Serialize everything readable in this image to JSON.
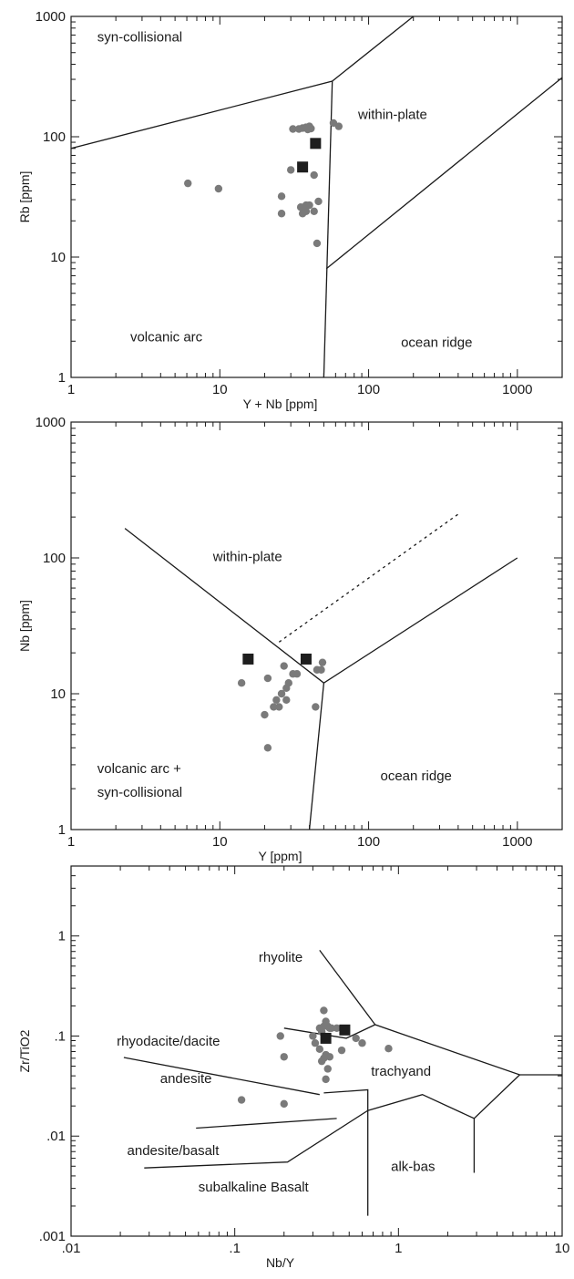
{
  "chart_data": [
    {
      "type": "scatter",
      "xlabel": "Y + Nb  [ppm]",
      "ylabel": "Rb  [ppm]",
      "x_scale": "log",
      "y_scale": "log",
      "xlim": [
        1,
        2000
      ],
      "ylim": [
        1,
        1000
      ],
      "x_ticks": [
        {
          "v": 1,
          "label": "1"
        },
        {
          "v": 10,
          "label": "10"
        },
        {
          "v": 100,
          "label": "100"
        },
        {
          "v": 1000,
          "label": "1000"
        }
      ],
      "y_ticks": [
        {
          "v": 1,
          "label": "1"
        },
        {
          "v": 10,
          "label": "10"
        },
        {
          "v": 100,
          "label": "100"
        },
        {
          "v": 1000,
          "label": "1000"
        }
      ],
      "field_labels": [
        {
          "text": "syn-collisional",
          "x": 1.5,
          "y": 620
        },
        {
          "text": "within-plate",
          "x": 85,
          "y": 140
        },
        {
          "text": "volcanic arc",
          "x": 2.5,
          "y": 2
        },
        {
          "text": "ocean ridge",
          "x": 165,
          "y": 1.8
        }
      ],
      "boundaries": [
        {
          "dashed": false,
          "points": [
            [
              1,
              80
            ],
            [
              57,
              290
            ],
            [
              200,
              1000
            ]
          ]
        },
        {
          "dashed": false,
          "points": [
            [
              57,
              290
            ],
            [
              50,
              1
            ]
          ]
        },
        {
          "dashed": false,
          "points": [
            [
              52,
              8
            ],
            [
              2000,
              310
            ]
          ]
        }
      ],
      "series": [
        {
          "marker": "circle",
          "color": "#7a7a7a",
          "points": [
            [
              6.1,
              41
            ],
            [
              9.8,
              37
            ],
            [
              31,
              116
            ],
            [
              34,
              116
            ],
            [
              36,
              118
            ],
            [
              38,
              120
            ],
            [
              39,
              115
            ],
            [
              40,
              122
            ],
            [
              41,
              117
            ],
            [
              58,
              130
            ],
            [
              63,
              122
            ],
            [
              30,
              53
            ],
            [
              43,
              48
            ],
            [
              26,
              32
            ],
            [
              26,
              23
            ],
            [
              35,
              26
            ],
            [
              36,
              23
            ],
            [
              38,
              27
            ],
            [
              38,
              24
            ],
            [
              40,
              27
            ],
            [
              43,
              24
            ],
            [
              46,
              29
            ],
            [
              45,
              13
            ]
          ]
        },
        {
          "marker": "square",
          "color": "#1e1e1e",
          "points": [
            [
              44,
              88
            ],
            [
              36,
              56
            ]
          ]
        }
      ]
    },
    {
      "type": "scatter",
      "xlabel": "Y  [ppm]",
      "ylabel": "Nb  [ppm]",
      "x_scale": "log",
      "y_scale": "log",
      "xlim": [
        1,
        2000
      ],
      "ylim": [
        1,
        1000
      ],
      "x_ticks": [
        {
          "v": 1,
          "label": "1"
        },
        {
          "v": 10,
          "label": "10"
        },
        {
          "v": 100,
          "label": "100"
        },
        {
          "v": 1000,
          "label": "1000"
        }
      ],
      "y_ticks": [
        {
          "v": 1,
          "label": "1"
        },
        {
          "v": 10,
          "label": "10"
        },
        {
          "v": 100,
          "label": "100"
        },
        {
          "v": 1000,
          "label": "1000"
        }
      ],
      "field_labels": [
        {
          "text": "within-plate",
          "x": 9,
          "y": 95
        },
        {
          "text": "volcanic arc +",
          "x": 1.5,
          "y": 2.6
        },
        {
          "text": "syn-collisional",
          "x": 1.5,
          "y": 1.75
        },
        {
          "text": "ocean ridge",
          "x": 120,
          "y": 2.3
        }
      ],
      "boundaries": [
        {
          "dashed": false,
          "points": [
            [
              2.3,
              165
            ],
            [
              50,
              12
            ],
            [
              1000,
              100
            ]
          ]
        },
        {
          "dashed": false,
          "points": [
            [
              50,
              12
            ],
            [
              40,
              1
            ]
          ]
        },
        {
          "dashed": true,
          "points": [
            [
              25,
              24
            ],
            [
              400,
              210
            ]
          ]
        }
      ],
      "series": [
        {
          "marker": "circle",
          "color": "#7a7a7a",
          "points": [
            [
              14,
              12
            ],
            [
              21,
              13
            ],
            [
              20,
              7
            ],
            [
              21,
              4
            ],
            [
              23,
              8
            ],
            [
              24,
              9
            ],
            [
              25,
              8
            ],
            [
              26,
              10
            ],
            [
              27,
              16
            ],
            [
              28,
              11
            ],
            [
              28,
              9
            ],
            [
              29,
              12
            ],
            [
              31,
              14
            ],
            [
              33,
              14
            ],
            [
              37,
              18
            ],
            [
              44,
              8
            ],
            [
              45,
              15
            ],
            [
              48,
              15
            ],
            [
              49,
              17
            ]
          ]
        },
        {
          "marker": "square",
          "color": "#1e1e1e",
          "points": [
            [
              15.5,
              18
            ],
            [
              38,
              18
            ]
          ]
        }
      ]
    },
    {
      "type": "scatter",
      "xlabel": "Nb/Y",
      "ylabel": "Zr/TiO2",
      "x_scale": "log",
      "y_scale": "log",
      "xlim": [
        0.01,
        10
      ],
      "ylim": [
        0.001,
        5
      ],
      "x_ticks": [
        {
          "v": 0.01,
          "label": ".01"
        },
        {
          "v": 0.1,
          "label": ".1"
        },
        {
          "v": 1,
          "label": "1"
        },
        {
          "v": 10,
          "label": "10"
        }
      ],
      "y_ticks": [
        {
          "v": 0.001,
          "label": ".001"
        },
        {
          "v": 0.01,
          "label": ".01"
        },
        {
          "v": 0.1,
          "label": ".1"
        },
        {
          "v": 1,
          "label": "1"
        }
      ],
      "field_labels": [
        {
          "text": "rhyolite",
          "x": 0.14,
          "y": 0.55
        },
        {
          "text": "rhyodacite/dacite",
          "x": 0.019,
          "y": 0.08
        },
        {
          "text": "andesite",
          "x": 0.035,
          "y": 0.034
        },
        {
          "text": "trachyand",
          "x": 0.68,
          "y": 0.04
        },
        {
          "text": "andesite/basalt",
          "x": 0.022,
          "y": 0.0065
        },
        {
          "text": "alk-bas",
          "x": 0.9,
          "y": 0.0045
        },
        {
          "text": "subalkaline Basalt",
          "x": 0.06,
          "y": 0.0028
        }
      ],
      "boundaries": [
        {
          "dashed": false,
          "points": [
            [
              0.33,
              0.72
            ],
            [
              0.72,
              0.13
            ]
          ]
        },
        {
          "dashed": false,
          "points": [
            [
              0.2,
              0.12
            ],
            [
              0.48,
              0.095
            ],
            [
              0.72,
              0.13
            ],
            [
              1.2,
              0.097
            ],
            [
              5.5,
              0.041
            ],
            [
              10,
              0.041
            ]
          ]
        },
        {
          "dashed": false,
          "points": [
            [
              0.021,
              0.061
            ],
            [
              0.33,
              0.026
            ]
          ]
        },
        {
          "dashed": false,
          "points": [
            [
              0.35,
              0.027
            ],
            [
              0.65,
              0.029
            ],
            [
              0.65,
              0.0016
            ]
          ]
        },
        {
          "dashed": false,
          "points": [
            [
              0.058,
              0.012
            ],
            [
              0.42,
              0.015
            ]
          ]
        },
        {
          "dashed": false,
          "points": [
            [
              0.028,
              0.0048
            ],
            [
              0.21,
              0.0055
            ],
            [
              0.65,
              0.018
            ],
            [
              1.4,
              0.026
            ],
            [
              2.9,
              0.015
            ],
            [
              5.5,
              0.041
            ]
          ]
        },
        {
          "dashed": false,
          "points": [
            [
              2.9,
              0.015
            ],
            [
              2.9,
              0.0043
            ]
          ]
        }
      ],
      "series": [
        {
          "marker": "circle",
          "color": "#7a7a7a",
          "points": [
            [
              0.19,
              0.1
            ],
            [
              0.2,
              0.062
            ],
            [
              0.11,
              0.023
            ],
            [
              0.2,
              0.021
            ],
            [
              0.3,
              0.1
            ],
            [
              0.31,
              0.085
            ],
            [
              0.33,
              0.12
            ],
            [
              0.34,
              0.11
            ],
            [
              0.35,
              0.18
            ],
            [
              0.36,
              0.14
            ],
            [
              0.35,
              0.125
            ],
            [
              0.37,
              0.125
            ],
            [
              0.38,
              0.12
            ],
            [
              0.39,
              0.12
            ],
            [
              0.42,
              0.12
            ],
            [
              0.33,
              0.074
            ],
            [
              0.34,
              0.056
            ],
            [
              0.35,
              0.06
            ],
            [
              0.36,
              0.065
            ],
            [
              0.38,
              0.062
            ],
            [
              0.37,
              0.047
            ],
            [
              0.36,
              0.037
            ],
            [
              0.45,
              0.072
            ],
            [
              0.55,
              0.095
            ],
            [
              0.6,
              0.085
            ],
            [
              0.87,
              0.075
            ]
          ]
        },
        {
          "marker": "square",
          "color": "#1e1e1e",
          "points": [
            [
              0.36,
              0.095
            ],
            [
              0.47,
              0.115
            ]
          ]
        }
      ]
    }
  ]
}
